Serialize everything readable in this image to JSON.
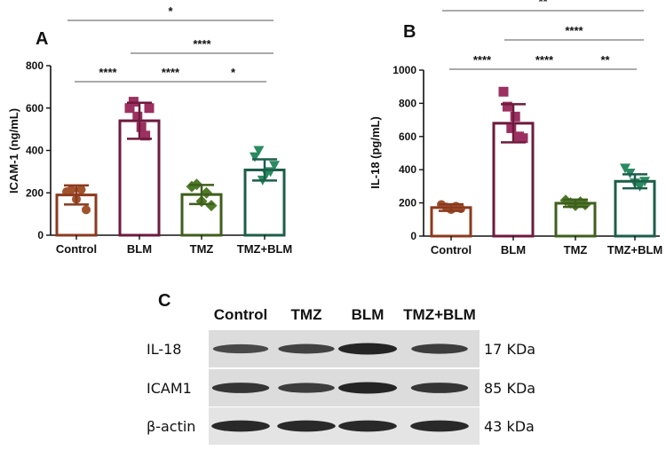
{
  "chart_data": [
    {
      "type": "bar",
      "panel": "A",
      "ylabel": "ICAM-1 (ng/mL)",
      "ylim": [
        0,
        800
      ],
      "yticks": [
        0,
        200,
        400,
        600,
        800
      ],
      "categories": [
        "Control",
        "BLM",
        "TMZ",
        "TMZ+BLM"
      ],
      "values": [
        190,
        540,
        192,
        308
      ],
      "errors": [
        45,
        85,
        45,
        50
      ],
      "colors": [
        "#8b3a1e",
        "#6e1a3c",
        "#3f5e1c",
        "#1c5e4a"
      ],
      "marker_colors": [
        "#a0522d",
        "#9c3060",
        "#4e7a28",
        "#2a8a62"
      ],
      "markers": [
        "circle",
        "square",
        "diamond",
        "triangle-down"
      ],
      "points": [
        [
          205,
          215,
          170,
          215,
          120
        ],
        [
          600,
          630,
          560,
          510,
          470,
          600
        ],
        [
          230,
          240,
          160,
          200,
          140
        ],
        [
          370,
          400,
          260,
          290,
          300,
          330
        ]
      ],
      "significance": [
        {
          "from": 0,
          "to": 3,
          "label": "*",
          "level": 3
        },
        {
          "from": 1,
          "to": 3,
          "label": "****",
          "level": 2
        },
        {
          "from": 0,
          "to": 1,
          "label": "****",
          "level": 1
        },
        {
          "from": 1,
          "to": 2,
          "label": "****",
          "level": 1
        },
        {
          "from": 2,
          "to": 3,
          "label": "*",
          "level": 1
        }
      ]
    },
    {
      "type": "bar",
      "panel": "B",
      "ylabel": "IL-18 (pg/mL)",
      "ylim": [
        0,
        1000
      ],
      "yticks": [
        0,
        200,
        400,
        600,
        800,
        1000
      ],
      "categories": [
        "Control",
        "BLM",
        "TMZ",
        "TMZ+BLM"
      ],
      "values": [
        172,
        680,
        198,
        330
      ],
      "errors": [
        20,
        115,
        22,
        42
      ],
      "colors": [
        "#8b3a1e",
        "#6e1a3c",
        "#3f5e1c",
        "#1c5e4a"
      ],
      "marker_colors": [
        "#a0522d",
        "#9c3060",
        "#4e7a28",
        "#2a8a62"
      ],
      "markers": [
        "circle",
        "square",
        "diamond",
        "triangle-down"
      ],
      "points": [
        [
          190,
          175,
          160,
          180,
          165
        ],
        [
          870,
          780,
          650,
          720,
          600,
          590
        ],
        [
          215,
          200,
          185,
          205,
          190
        ],
        [
          410,
          380,
          320,
          300,
          330
        ]
      ],
      "significance": [
        {
          "from": 0,
          "to": 3,
          "label": "**",
          "level": 3
        },
        {
          "from": 1,
          "to": 3,
          "label": "****",
          "level": 2
        },
        {
          "from": 0,
          "to": 1,
          "label": "****",
          "level": 1
        },
        {
          "from": 1,
          "to": 2,
          "label": "****",
          "level": 1
        },
        {
          "from": 2,
          "to": 3,
          "label": "**",
          "level": 1
        }
      ]
    }
  ],
  "blot": {
    "panel": "C",
    "columns": [
      "Control",
      "TMZ",
      "BLM",
      "TMZ+BLM"
    ],
    "rows": [
      {
        "protein": "IL-18",
        "size": "17 KDa",
        "intensity": [
          0.55,
          0.65,
          1.0,
          0.7
        ]
      },
      {
        "protein": "ICAM1",
        "size": "85 KDa",
        "intensity": [
          0.8,
          0.7,
          1.0,
          0.8
        ]
      },
      {
        "protein": "β-actin",
        "size": "43 kDa",
        "intensity": [
          0.95,
          0.95,
          0.95,
          0.95
        ]
      }
    ]
  }
}
